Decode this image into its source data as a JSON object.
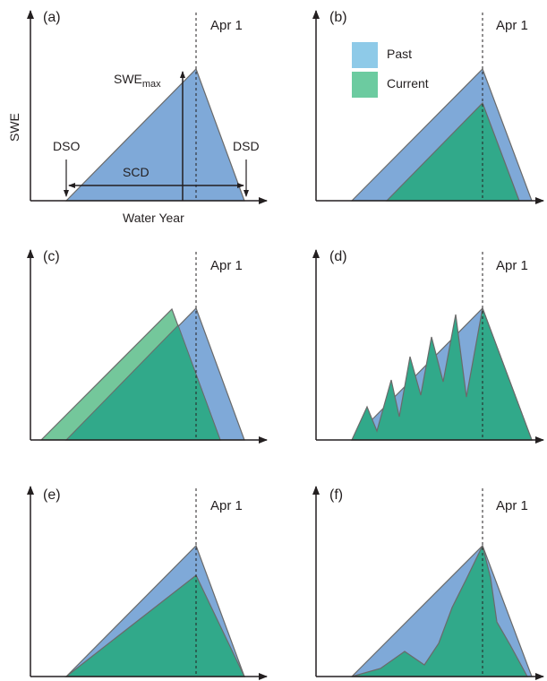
{
  "colors": {
    "past": "#7fa9d8",
    "current": "#31a98a",
    "current_c": "#74c79b",
    "past_legend": "#8ecae8",
    "current_legend": "#6ccba0",
    "outline": "#6a6a6a",
    "axis": "#231f20"
  },
  "legend": {
    "past": "Past",
    "current": "Current"
  },
  "annotations": {
    "swe_axis": "SWE",
    "water_year": "Water Year",
    "swe_max_base": "SWE",
    "swe_max_sub": "max",
    "dso": "DSO",
    "dsd": "DSD",
    "scd": "SCD"
  },
  "apr_label": "Apr 1",
  "panels": [
    {
      "id": "a",
      "label": "(a)"
    },
    {
      "id": "b",
      "label": "(b)"
    },
    {
      "id": "c",
      "label": "(c)"
    },
    {
      "id": "d",
      "label": "(d)"
    },
    {
      "id": "e",
      "label": "(e)"
    },
    {
      "id": "f",
      "label": "(f)"
    }
  ]
}
